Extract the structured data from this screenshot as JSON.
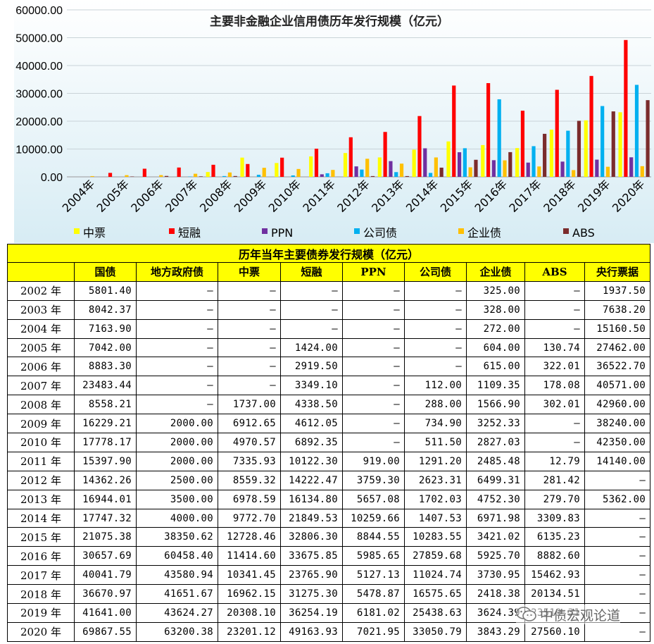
{
  "chart_data": {
    "type": "bar",
    "title": "主要非金融企业信用债历年发行规模（亿元）",
    "categories": [
      "2004年",
      "2005年",
      "2006年",
      "2007年",
      "2008年",
      "2009年",
      "2010年",
      "2011年",
      "2012年",
      "2013年",
      "2014年",
      "2015年",
      "2016年",
      "2017年",
      "2018年",
      "2019年",
      "2020年"
    ],
    "ylim": [
      0,
      60000
    ],
    "yticks": [
      "0.00",
      "10000.00",
      "20000.00",
      "30000.00",
      "40000.00",
      "50000.00",
      "60000.00"
    ],
    "grid": true,
    "legend_position": "bottom",
    "series": [
      {
        "name": "中票",
        "color": "#ffff00",
        "values": [
          0,
          0,
          0,
          0,
          1737.0,
          6912.65,
          4970.57,
          7335.93,
          8559.32,
          6978.59,
          9772.7,
          12728.46,
          11414.6,
          10341.45,
          16962.15,
          20308.1,
          23201.12
        ]
      },
      {
        "name": "短融",
        "color": "#ff0000",
        "values": [
          0,
          1424.0,
          2919.5,
          3349.1,
          4338.5,
          4612.05,
          6892.35,
          10122.3,
          14222.47,
          16134.8,
          21849.53,
          32806.3,
          33675.85,
          23765.9,
          31275.3,
          36254.19,
          49163.93
        ]
      },
      {
        "name": "PPN",
        "color": "#7030a0",
        "values": [
          0,
          0,
          0,
          0,
          0,
          0,
          0,
          919.0,
          3759.3,
          5657.08,
          10259.66,
          8844.55,
          5985.65,
          5127.13,
          5478.87,
          6181.02,
          7021.95
        ]
      },
      {
        "name": "公司债",
        "color": "#00b0f0",
        "values": [
          0,
          0,
          0,
          112.0,
          288.0,
          734.9,
          511.5,
          1291.2,
          2623.31,
          1702.03,
          1407.53,
          10283.55,
          27859.68,
          11024.74,
          16575.65,
          25438.63,
          33050.79
        ]
      },
      {
        "name": "企业债",
        "color": "#ffc000",
        "values": [
          272.0,
          604.0,
          615.0,
          1109.35,
          1566.9,
          3252.33,
          2827.03,
          2485.48,
          6499.31,
          4752.3,
          6971.98,
          3421.02,
          5925.7,
          3730.95,
          2418.38,
          3624.39,
          3843.29
        ]
      },
      {
        "name": "ABS",
        "color": "#7b2c2c",
        "values": [
          0,
          130.74,
          322.01,
          178.08,
          302.01,
          0,
          0,
          12.79,
          281.42,
          279.7,
          3309.83,
          6135.23,
          8882.6,
          15462.93,
          20134.51,
          23519.31,
          27560.1
        ]
      }
    ]
  },
  "table": {
    "title": "历年当年主要债券发行规模（亿元）",
    "headers": [
      "",
      "国债",
      "地方政府债",
      "中票",
      "短融",
      "PPN",
      "公司债",
      "企业债",
      "ABS",
      "央行票据"
    ],
    "rows": [
      [
        "2002 年",
        "5801.40",
        "–",
        "–",
        "–",
        "–",
        "–",
        "325.00",
        "–",
        "1937.50"
      ],
      [
        "2003 年",
        "8042.37",
        "–",
        "–",
        "–",
        "–",
        "–",
        "328.00",
        "–",
        "7638.20"
      ],
      [
        "2004 年",
        "7163.90",
        "–",
        "–",
        "–",
        "–",
        "–",
        "272.00",
        "–",
        "15160.50"
      ],
      [
        "2005 年",
        "7042.00",
        "–",
        "–",
        "1424.00",
        "–",
        "–",
        "604.00",
        "130.74",
        "27462.00"
      ],
      [
        "2006 年",
        "8883.30",
        "–",
        "–",
        "2919.50",
        "–",
        "–",
        "615.00",
        "322.01",
        "36522.70"
      ],
      [
        "2007 年",
        "23483.44",
        "–",
        "–",
        "3349.10",
        "–",
        "112.00",
        "1109.35",
        "178.08",
        "40571.00"
      ],
      [
        "2008 年",
        "8558.21",
        "–",
        "1737.00",
        "4338.50",
        "–",
        "288.00",
        "1566.90",
        "302.01",
        "42960.00"
      ],
      [
        "2009 年",
        "16229.21",
        "2000.00",
        "6912.65",
        "4612.05",
        "–",
        "734.90",
        "3252.33",
        "–",
        "38240.00"
      ],
      [
        "2010 年",
        "17778.17",
        "2000.00",
        "4970.57",
        "6892.35",
        "–",
        "511.50",
        "2827.03",
        "–",
        "42350.00"
      ],
      [
        "2011 年",
        "15397.90",
        "2000.00",
        "7335.93",
        "10122.30",
        "919.00",
        "1291.20",
        "2485.48",
        "12.79",
        "14140.00"
      ],
      [
        "2012 年",
        "14362.26",
        "2500.00",
        "8559.32",
        "14222.47",
        "3759.30",
        "2623.31",
        "6499.31",
        "281.42",
        "–"
      ],
      [
        "2013 年",
        "16944.01",
        "3500.00",
        "6978.59",
        "16134.80",
        "5657.08",
        "1702.03",
        "4752.30",
        "279.70",
        "5362.00"
      ],
      [
        "2014 年",
        "17747.32",
        "4000.00",
        "9772.70",
        "21849.53",
        "10259.66",
        "1407.53",
        "6971.98",
        "3309.83",
        "–"
      ],
      [
        "2015 年",
        "21075.38",
        "38350.62",
        "12728.46",
        "32806.30",
        "8844.55",
        "10283.55",
        "3421.02",
        "6135.23",
        "–"
      ],
      [
        "2016 年",
        "30657.69",
        "60458.40",
        "11414.60",
        "33675.85",
        "5985.65",
        "27859.68",
        "5925.70",
        "8882.60",
        "–"
      ],
      [
        "2017 年",
        "40041.79",
        "43580.94",
        "10341.45",
        "23765.90",
        "5127.13",
        "11024.74",
        "3730.95",
        "15462.93",
        "–"
      ],
      [
        "2018 年",
        "36670.97",
        "41651.67",
        "16962.15",
        "31275.30",
        "5478.87",
        "16575.65",
        "2418.38",
        "20134.51",
        "–"
      ],
      [
        "2019 年",
        "41641.00",
        "43624.27",
        "20308.10",
        "36254.19",
        "6181.02",
        "25438.63",
        "3624.39",
        "23519.31",
        "–"
      ],
      [
        "2020 年",
        "69867.55",
        "63200.38",
        "23201.12",
        "49163.93",
        "7021.95",
        "33050.79",
        "3843.29",
        "27560.10",
        "–"
      ]
    ]
  },
  "watermark": {
    "text": "中债宏观论道",
    "icon": "wechat-icon"
  }
}
